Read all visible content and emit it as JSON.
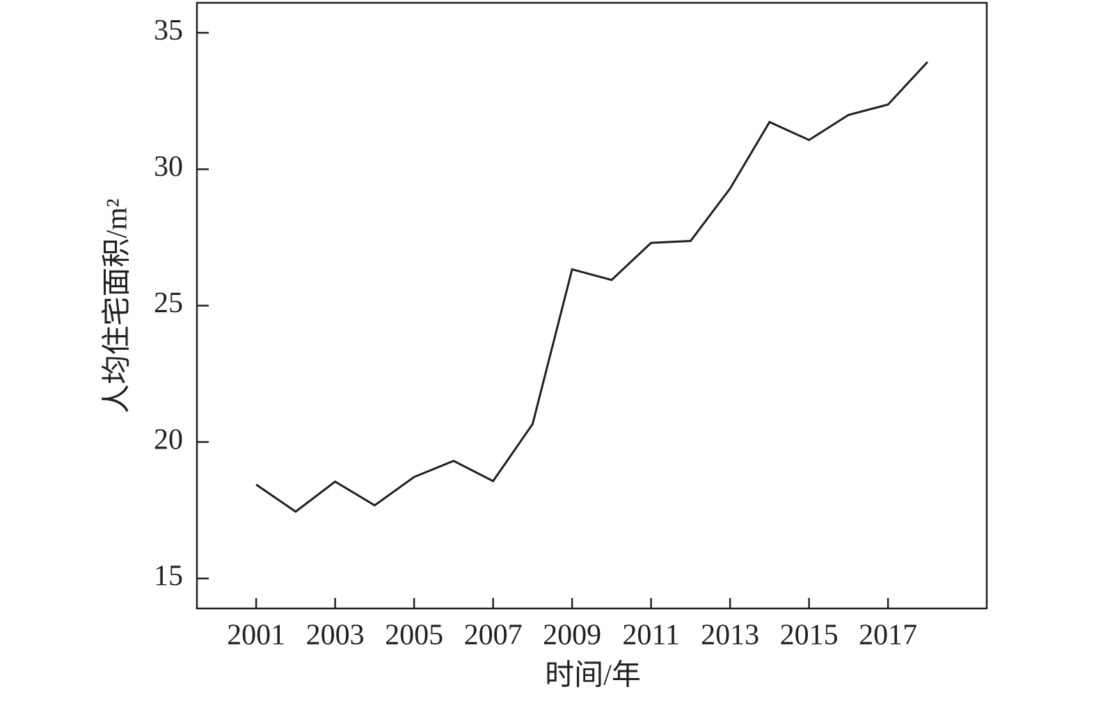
{
  "chart_data": {
    "type": "line",
    "x_label": "时间/年",
    "y_label": "人均住宅面积/m²",
    "x": [
      2001,
      2002,
      2003,
      2004,
      2005,
      2006,
      2007,
      2008,
      2009,
      2010,
      2011,
      2012,
      2013,
      2014,
      2015,
      2016,
      2017,
      2018
    ],
    "values": [
      18.44,
      17.45,
      18.55,
      17.68,
      18.72,
      19.31,
      18.57,
      20.66,
      26.33,
      25.94,
      27.3,
      27.37,
      29.29,
      31.73,
      31.07,
      31.99,
      32.37,
      33.93
    ],
    "color": "#231f20",
    "xlim": [
      1999.5,
      2019.5
    ],
    "ylim": [
      13.9,
      36.1
    ],
    "xticks": [
      2001,
      2003,
      2005,
      2007,
      2009,
      2011,
      2013,
      2015,
      2017
    ],
    "yticks": [
      15,
      20,
      25,
      30,
      35
    ]
  }
}
